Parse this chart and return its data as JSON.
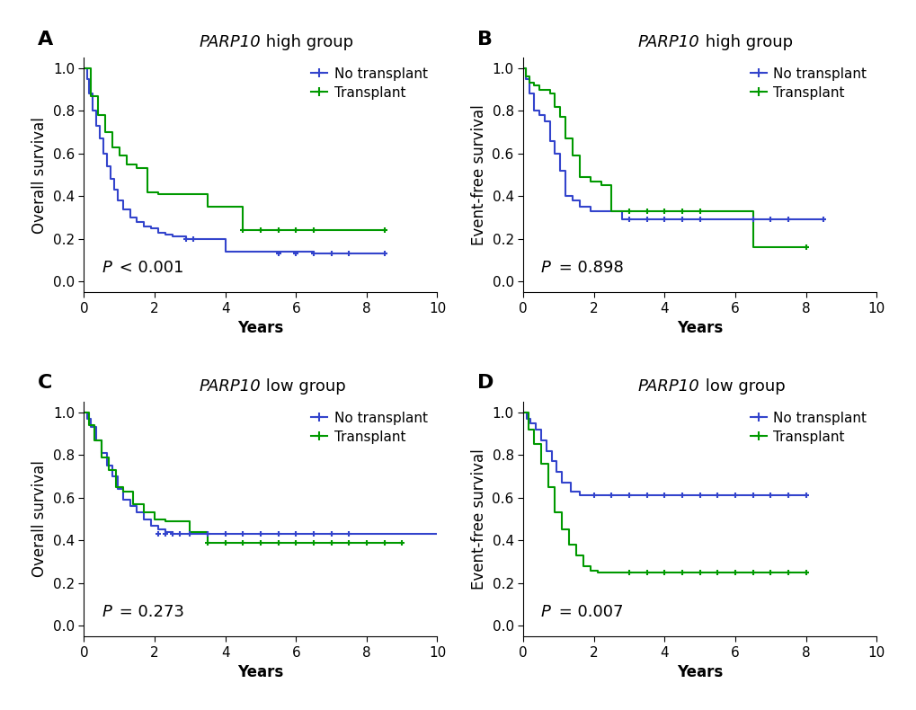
{
  "panels": [
    {
      "label": "A",
      "title_italic": "PARP10",
      "title_rest": " high group",
      "ylabel": "Overall survival",
      "xlabel": "Years",
      "pvalue_italic": "P",
      "pvalue_rest": " < 0.001",
      "xlim": [
        0,
        10
      ],
      "ylim": [
        -0.05,
        1.05
      ],
      "xticks": [
        0,
        2,
        4,
        6,
        8,
        10
      ],
      "yticks": [
        0.0,
        0.2,
        0.4,
        0.6,
        0.8,
        1.0
      ],
      "blue_x": [
        0,
        0.08,
        0.15,
        0.25,
        0.35,
        0.45,
        0.55,
        0.65,
        0.75,
        0.85,
        0.95,
        1.1,
        1.3,
        1.5,
        1.7,
        1.9,
        2.1,
        2.3,
        2.5,
        2.7,
        2.9,
        3.1,
        3.4,
        4.0,
        6.5,
        8.5
      ],
      "blue_y": [
        1.0,
        0.95,
        0.88,
        0.8,
        0.73,
        0.67,
        0.6,
        0.54,
        0.48,
        0.43,
        0.38,
        0.34,
        0.3,
        0.28,
        0.26,
        0.25,
        0.23,
        0.22,
        0.21,
        0.21,
        0.2,
        0.2,
        0.2,
        0.14,
        0.13,
        0.13
      ],
      "blue_censors": [
        2.9,
        3.1,
        5.5,
        6.0,
        6.5,
        7.0,
        7.5,
        8.5
      ],
      "blue_censor_y": [
        0.2,
        0.2,
        0.13,
        0.13,
        0.13,
        0.13,
        0.13,
        0.13
      ],
      "green_x": [
        0,
        0.2,
        0.4,
        0.6,
        0.8,
        1.0,
        1.2,
        1.5,
        1.8,
        2.1,
        2.5,
        3.0,
        3.5,
        4.5,
        6.5,
        8.5
      ],
      "green_y": [
        1.0,
        0.87,
        0.78,
        0.7,
        0.63,
        0.59,
        0.55,
        0.53,
        0.42,
        0.41,
        0.41,
        0.41,
        0.35,
        0.24,
        0.24,
        0.24
      ],
      "green_censors": [
        4.5,
        5.0,
        5.5,
        6.0,
        6.5,
        8.5
      ],
      "green_censor_y": [
        0.24,
        0.24,
        0.24,
        0.24,
        0.24,
        0.24
      ]
    },
    {
      "label": "B",
      "title_italic": "PARP10",
      "title_rest": " high group",
      "ylabel": "Event-free survival",
      "xlabel": "Years",
      "pvalue_italic": "P",
      "pvalue_rest": " = 0.898",
      "xlim": [
        0,
        10
      ],
      "ylim": [
        -0.05,
        1.05
      ],
      "xticks": [
        0,
        2,
        4,
        6,
        8,
        10
      ],
      "yticks": [
        0.0,
        0.2,
        0.4,
        0.6,
        0.8,
        1.0
      ],
      "blue_x": [
        0,
        0.08,
        0.18,
        0.3,
        0.45,
        0.6,
        0.75,
        0.9,
        1.05,
        1.2,
        1.4,
        1.6,
        1.9,
        2.2,
        2.5,
        2.8,
        3.5,
        6.0,
        7.5,
        8.5
      ],
      "blue_y": [
        1.0,
        0.95,
        0.88,
        0.8,
        0.78,
        0.75,
        0.66,
        0.6,
        0.52,
        0.4,
        0.38,
        0.35,
        0.33,
        0.33,
        0.33,
        0.29,
        0.29,
        0.29,
        0.29,
        0.29
      ],
      "blue_censors": [
        3.0,
        3.5,
        4.0,
        4.5,
        5.0,
        6.5,
        7.0,
        7.5,
        8.5
      ],
      "blue_censor_y": [
        0.29,
        0.29,
        0.29,
        0.29,
        0.29,
        0.29,
        0.29,
        0.29,
        0.29
      ],
      "green_x": [
        0,
        0.08,
        0.18,
        0.3,
        0.45,
        0.6,
        0.75,
        0.9,
        1.05,
        1.2,
        1.4,
        1.6,
        1.9,
        2.2,
        2.5,
        3.0,
        5.8,
        6.5,
        8.0
      ],
      "green_y": [
        1.0,
        0.96,
        0.93,
        0.92,
        0.9,
        0.9,
        0.88,
        0.82,
        0.77,
        0.67,
        0.59,
        0.49,
        0.47,
        0.45,
        0.33,
        0.33,
        0.33,
        0.16,
        0.16
      ],
      "green_censors": [
        3.0,
        3.5,
        4.0,
        4.5,
        5.0,
        8.0
      ],
      "green_censor_y": [
        0.33,
        0.33,
        0.33,
        0.33,
        0.33,
        0.16
      ]
    },
    {
      "label": "C",
      "title_italic": "PARP10",
      "title_rest": " low group",
      "ylabel": "Overall survival",
      "xlabel": "Years",
      "pvalue_italic": "P",
      "pvalue_rest": " = 0.273",
      "xlim": [
        0,
        10
      ],
      "ylim": [
        -0.05,
        1.05
      ],
      "xticks": [
        0,
        2,
        4,
        6,
        8,
        10
      ],
      "yticks": [
        0.0,
        0.2,
        0.4,
        0.6,
        0.8,
        1.0
      ],
      "blue_x": [
        0,
        0.1,
        0.2,
        0.35,
        0.5,
        0.65,
        0.8,
        0.95,
        1.1,
        1.3,
        1.5,
        1.7,
        1.9,
        2.1,
        2.3,
        2.5,
        2.7,
        3.0,
        4.5,
        7.5,
        10.0
      ],
      "blue_y": [
        1.0,
        0.97,
        0.93,
        0.87,
        0.81,
        0.75,
        0.7,
        0.64,
        0.59,
        0.56,
        0.53,
        0.5,
        0.47,
        0.45,
        0.44,
        0.43,
        0.43,
        0.43,
        0.43,
        0.43,
        0.43
      ],
      "blue_censors": [
        2.1,
        2.3,
        2.5,
        2.7,
        3.0,
        3.5,
        4.0,
        4.5,
        5.0,
        5.5,
        6.0,
        6.5,
        7.0,
        7.5
      ],
      "blue_censor_y": [
        0.43,
        0.43,
        0.43,
        0.43,
        0.43,
        0.43,
        0.43,
        0.43,
        0.43,
        0.43,
        0.43,
        0.43,
        0.43,
        0.43
      ],
      "green_x": [
        0,
        0.15,
        0.3,
        0.5,
        0.7,
        0.9,
        1.1,
        1.4,
        1.7,
        2.0,
        2.3,
        2.7,
        3.0,
        3.5,
        4.5,
        9.0
      ],
      "green_y": [
        1.0,
        0.94,
        0.87,
        0.79,
        0.73,
        0.65,
        0.63,
        0.57,
        0.53,
        0.5,
        0.49,
        0.49,
        0.44,
        0.39,
        0.39,
        0.39
      ],
      "green_censors": [
        3.5,
        4.0,
        4.5,
        5.0,
        5.5,
        6.0,
        6.5,
        7.0,
        7.5,
        8.0,
        8.5,
        9.0
      ],
      "green_censor_y": [
        0.39,
        0.39,
        0.39,
        0.39,
        0.39,
        0.39,
        0.39,
        0.39,
        0.39,
        0.39,
        0.39,
        0.39
      ]
    },
    {
      "label": "D",
      "title_italic": "PARP10",
      "title_rest": " low group",
      "ylabel": "Event-free survival",
      "xlabel": "Years",
      "pvalue_italic": "P",
      "pvalue_rest": " = 0.007",
      "xlim": [
        0,
        10
      ],
      "ylim": [
        -0.05,
        1.05
      ],
      "xticks": [
        0,
        2,
        4,
        6,
        8,
        10
      ],
      "yticks": [
        0.0,
        0.2,
        0.4,
        0.6,
        0.8,
        1.0
      ],
      "blue_x": [
        0,
        0.1,
        0.2,
        0.35,
        0.5,
        0.65,
        0.8,
        0.95,
        1.1,
        1.35,
        1.6,
        2.0,
        8.0
      ],
      "blue_y": [
        1.0,
        0.97,
        0.95,
        0.92,
        0.87,
        0.82,
        0.77,
        0.72,
        0.67,
        0.63,
        0.61,
        0.61,
        0.61
      ],
      "blue_censors": [
        2.0,
        2.5,
        3.0,
        3.5,
        4.0,
        4.5,
        5.0,
        5.5,
        6.0,
        6.5,
        7.0,
        7.5,
        8.0
      ],
      "blue_censor_y": [
        0.61,
        0.61,
        0.61,
        0.61,
        0.61,
        0.61,
        0.61,
        0.61,
        0.61,
        0.61,
        0.61,
        0.61,
        0.61
      ],
      "green_x": [
        0,
        0.15,
        0.3,
        0.5,
        0.7,
        0.9,
        1.1,
        1.3,
        1.5,
        1.7,
        1.9,
        2.1,
        2.5,
        8.0
      ],
      "green_y": [
        1.0,
        0.92,
        0.85,
        0.76,
        0.65,
        0.53,
        0.45,
        0.38,
        0.33,
        0.28,
        0.26,
        0.25,
        0.25,
        0.25
      ],
      "green_censors": [
        3.0,
        3.5,
        4.0,
        4.5,
        5.0,
        5.5,
        6.0,
        6.5,
        7.0,
        7.5,
        8.0
      ],
      "green_censor_y": [
        0.25,
        0.25,
        0.25,
        0.25,
        0.25,
        0.25,
        0.25,
        0.25,
        0.25,
        0.25,
        0.25
      ]
    }
  ],
  "blue_color": "#3344CC",
  "green_color": "#009900",
  "legend_labels": [
    "No transplant",
    "Transplant"
  ],
  "bg_color": "#FFFFFF",
  "pvalue_fontsize": 13,
  "title_fontsize": 13,
  "label_fontsize": 12,
  "tick_fontsize": 11,
  "legend_fontsize": 11
}
